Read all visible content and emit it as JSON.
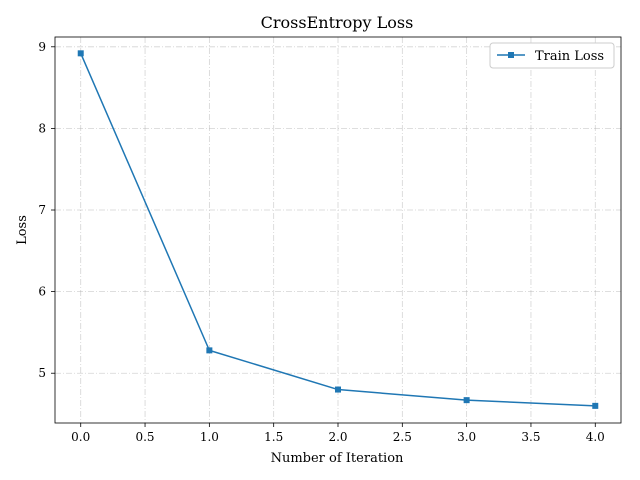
{
  "chart_data": {
    "type": "line",
    "title": "CrossEntropy Loss",
    "xlabel": "Number of Iteration",
    "ylabel": "Loss",
    "xlim": [
      -0.2,
      4.2
    ],
    "ylim": [
      4.39,
      9.12
    ],
    "xticks": [
      0.0,
      0.5,
      1.0,
      1.5,
      2.0,
      2.5,
      3.0,
      3.5,
      4.0
    ],
    "xtick_labels": [
      "0.0",
      "0.5",
      "1.0",
      "1.5",
      "2.0",
      "2.5",
      "3.0",
      "3.5",
      "4.0"
    ],
    "yticks": [
      5,
      6,
      7,
      8,
      9
    ],
    "ytick_labels": [
      "5",
      "6",
      "7",
      "8",
      "9"
    ],
    "grid": true,
    "legend_position": "top-right",
    "series": [
      {
        "name": "Train Loss",
        "color": "#1f77b4",
        "marker": "square",
        "x": [
          0,
          1,
          2,
          3,
          4
        ],
        "y": [
          8.92,
          5.28,
          4.8,
          4.67,
          4.6
        ]
      }
    ]
  }
}
